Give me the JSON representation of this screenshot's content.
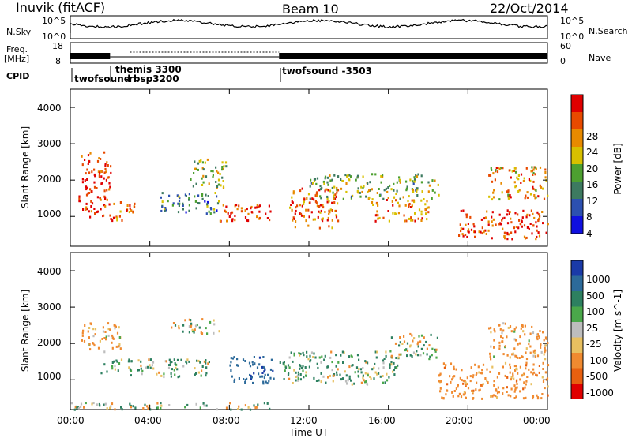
{
  "header": {
    "station": "Inuvik (fitACF)",
    "beam": "Beam 10",
    "date": "22/Oct/2014"
  },
  "summary_panels": {
    "left_labels": {
      "nsky": "N.Sky",
      "freq_line1": "Freq.",
      "freq_line2": "[MHz]",
      "cpid": "CPID"
    },
    "right_labels": {
      "nsearch": "N.Search",
      "nave": "Nave"
    },
    "noise_ticks_left": [
      "10^5",
      "10^0"
    ],
    "noise_ticks_right": [
      "10^5",
      "10^0"
    ],
    "freq_ticks": [
      "18",
      "8"
    ],
    "nave_ticks": [
      "60",
      "0"
    ]
  },
  "cpid_labels": [
    {
      "text": "twofsound",
      "start_hr": 0.0
    },
    {
      "text": "themis 3300",
      "start_hr": 2.8
    },
    {
      "text": "-rbsp3200",
      "start_hr": 3.45
    },
    {
      "text": "twofsound -3503",
      "start_hr": 10.5
    }
  ],
  "x_axis": {
    "label": "Time UT",
    "ticks": [
      "00:00",
      "04:00",
      "08:00",
      "12:00",
      "16:00",
      "20:00",
      "00:00"
    ],
    "range_hours": [
      0,
      24
    ]
  },
  "power_panel": {
    "ylabel": "Slant Range [km]",
    "yticks": [
      "1000",
      "2000",
      "3000",
      "4000"
    ],
    "colorbar_label": "Power [dB]",
    "colorbar_ticks": [
      "4",
      "8",
      "12",
      "16",
      "20",
      "24",
      "28"
    ],
    "colors": [
      "#1010e0",
      "#2c50b0",
      "#3d7a60",
      "#4da030",
      "#d8c000",
      "#e88a00",
      "#e84a00",
      "#e00000"
    ]
  },
  "velocity_panel": {
    "ylabel": "Slant Range [km]",
    "yticks": [
      "1000",
      "2000",
      "3000",
      "4000"
    ],
    "colorbar_label": "Velocity [m s^-1]",
    "colorbar_ticks": [
      "1000",
      "500",
      "100",
      "25",
      "-25",
      "-100",
      "-500",
      "-1000"
    ],
    "colors": [
      "#1a3aa8",
      "#2c6a9a",
      "#2d8060",
      "#4aa84a",
      "#bdbdbd",
      "#e8c060",
      "#f08a30",
      "#e86010",
      "#e00000"
    ]
  },
  "chart_data": {
    "type": "heatmap",
    "title": "Inuvik (fitACF) Beam 10 22/Oct/2014",
    "xlabel": "Time UT",
    "ylabel": "Slant Range [km]",
    "xlim_hours": [
      0,
      24
    ],
    "ylim_km": [
      180,
      4500
    ],
    "gridded": false,
    "series": [
      {
        "name": "Power [dB]",
        "scatter_regions": [
          {
            "t": [
              0.4,
              2.0
            ],
            "r": [
              1000,
              2800
            ],
            "v": 26
          },
          {
            "t": [
              2.0,
              3.2
            ],
            "r": [
              900,
              1500
            ],
            "v": 22
          },
          {
            "t": [
              4.5,
              7.5
            ],
            "r": [
              1100,
              1700
            ],
            "v": 10
          },
          {
            "t": [
              6.0,
              7.8
            ],
            "r": [
              1800,
              2600
            ],
            "v": 14
          },
          {
            "t": [
              7.5,
              10.2
            ],
            "r": [
              900,
              1400
            ],
            "v": 27
          },
          {
            "t": [
              11.0,
              13.5
            ],
            "r": [
              700,
              1800
            ],
            "v": 24
          },
          {
            "t": [
              12.0,
              18.5
            ],
            "r": [
              1500,
              2200
            ],
            "v": 14
          },
          {
            "t": [
              15.0,
              18.0
            ],
            "r": [
              900,
              1500
            ],
            "v": 22
          },
          {
            "t": [
              19.5,
              24.0
            ],
            "r": [
              400,
              1200
            ],
            "v": 26
          },
          {
            "t": [
              21.0,
              24.0
            ],
            "r": [
              1500,
              2400
            ],
            "v": 20
          }
        ]
      },
      {
        "name": "Velocity [m s^-1]",
        "scatter_regions": [
          {
            "t": [
              0.4,
              2.5
            ],
            "r": [
              1800,
              2600
            ],
            "v": -200
          },
          {
            "t": [
              1.5,
              7.0
            ],
            "r": [
              1100,
              1600
            ],
            "v": 120
          },
          {
            "t": [
              5.0,
              7.5
            ],
            "r": [
              2300,
              2700
            ],
            "v": 0
          },
          {
            "t": [
              8.0,
              10.2
            ],
            "r": [
              900,
              1700
            ],
            "v": 800
          },
          {
            "t": [
              10.5,
              16.5
            ],
            "r": [
              900,
              1800
            ],
            "v": 120
          },
          {
            "t": [
              16.0,
              18.5
            ],
            "r": [
              1600,
              2300
            ],
            "v": 0
          },
          {
            "t": [
              18.5,
              24.0
            ],
            "r": [
              500,
              1500
            ],
            "v": -300
          },
          {
            "t": [
              21.0,
              24.0
            ],
            "r": [
              1600,
              2600
            ],
            "v": -200
          },
          {
            "t": [
              0.0,
              10.0
            ],
            "r": [
              200,
              400
            ],
            "v": 0
          }
        ]
      }
    ],
    "colorbar_power_range_db": [
      0,
      30
    ],
    "colorbar_velocity_range": [
      -1000,
      1000
    ]
  }
}
